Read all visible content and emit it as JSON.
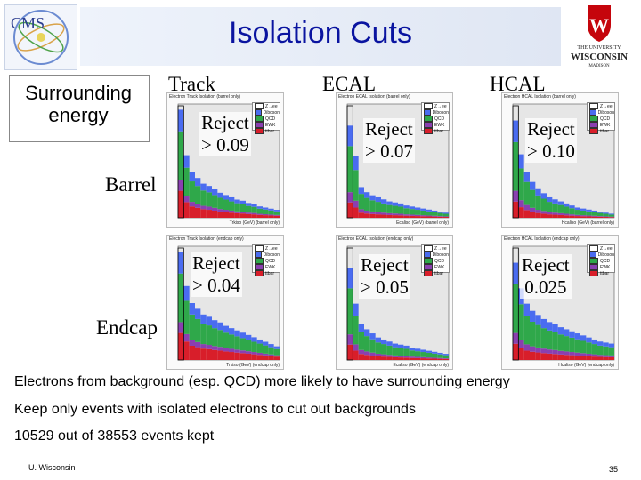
{
  "title": "Isolation Cuts",
  "logos": {
    "cms": "CMS",
    "uw_line1": "THE UNIVERSITY",
    "uw_line2": "WISCONSIN",
    "uw_line3": "MADISON"
  },
  "surrounding_label": "Surrounding energy",
  "columns": [
    "Track",
    "ECAL",
    "HCAL"
  ],
  "rows": [
    "Barrel",
    "Endcap"
  ],
  "plots": [
    {
      "title": "Electron Track Isolation (barrel only)",
      "xlabel": "Trkiso (GeV) (barrel only)",
      "reject_line1": "Reject",
      "reject_line2": "> 0.09"
    },
    {
      "title": "Electron ECAL Isolation (barrel only)",
      "xlabel": "Ecaliso (GeV) (barrel only)",
      "reject_line1": "Reject",
      "reject_line2": "> 0.07"
    },
    {
      "title": "Electron HCAL Isolation (barrel only)",
      "xlabel": "Hcaliso (GeV) (barrel only)",
      "reject_line1": "Reject",
      "reject_line2": "> 0.10"
    },
    {
      "title": "Electron Track Isolation (endcap only)",
      "xlabel": "Trkiso (GeV) (endcap only)",
      "reject_line1": "Reject",
      "reject_line2": "> 0.04"
    },
    {
      "title": "Electron ECAL Isolation (endcap only)",
      "xlabel": "Ecaliso (GeV) (endcap only)",
      "reject_line1": "Reject",
      "reject_line2": "> 0.05"
    },
    {
      "title": "Electron HCAL Isolation (endcap only)",
      "xlabel": "Hcaliso (GeV) (endcap only)",
      "reject_line1": "Reject",
      "reject_line2": "0.025"
    }
  ],
  "legend": [
    "Z→ee",
    "Diboson",
    "QCD",
    "EWK",
    "ttbar"
  ],
  "legend_colors": [
    "#ffffff",
    "#4a6cf0",
    "#2fa84a",
    "#8a3fb0",
    "#d81e2a"
  ],
  "bullets": [
    "Electrons from background (esp. QCD) more likely to have surrounding energy",
    "Keep only events with isolated electrons to cut out backgrounds",
    "10529 out of 38553 events kept"
  ],
  "footer": {
    "left": "U. Wisconsin",
    "page": "35"
  }
}
